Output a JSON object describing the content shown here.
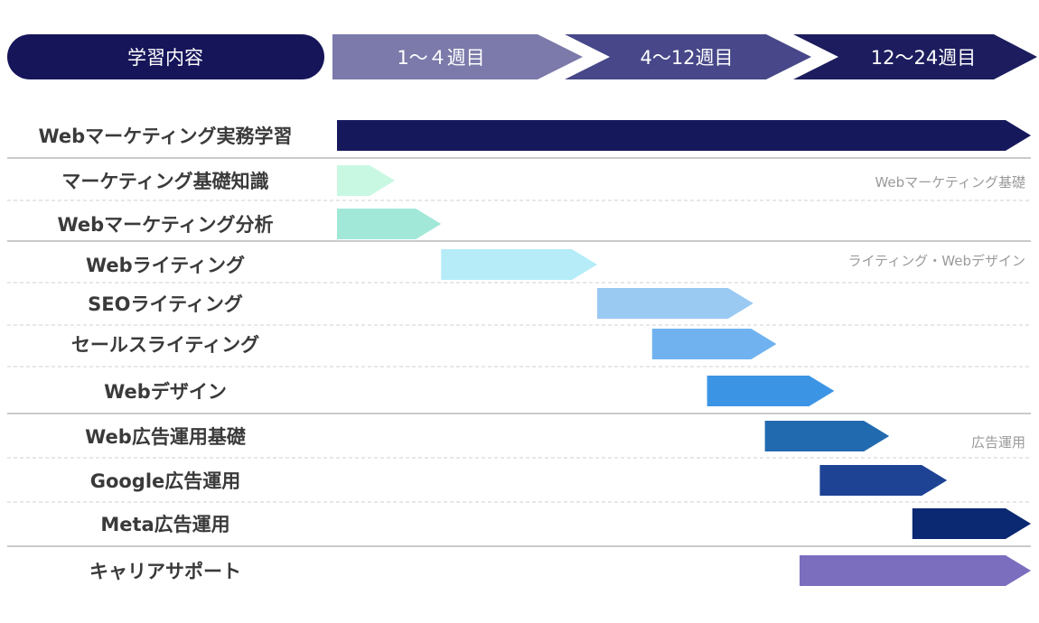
{
  "colors": {
    "header_pill": "#16155a",
    "header_period_1": "#7b7aaa",
    "header_period_2": "#474789",
    "header_period_3": "#1c1c5e",
    "divider_solid": "#b9b9b9",
    "divider_dashed": "#cfcfcf",
    "row_text": "#3a3a3a",
    "group_text": "#9a9a9a"
  },
  "header": {
    "label": "学習内容",
    "periods": [
      "1～４週目",
      "4～12週目",
      "12～24週目"
    ]
  },
  "chart_data": {
    "type": "gantt",
    "x_unit": "week",
    "x_range": [
      0,
      24
    ],
    "rows": [
      {
        "label": "Webマーケティング実務学習",
        "start": 0,
        "end": 24,
        "color": "#16185c"
      },
      {
        "label": "マーケティング基礎知識",
        "start": 0,
        "end": 2,
        "color": "#c8f8e2"
      },
      {
        "label": "Webマーケティング分析",
        "start": 0,
        "end": 3.6,
        "color": "#a2e8d9"
      },
      {
        "label": "Webライティング",
        "start": 3.6,
        "end": 9,
        "color": "#b5ecf8"
      },
      {
        "label": "SEOライティング",
        "start": 9,
        "end": 14.4,
        "color": "#9ac9f2"
      },
      {
        "label": "セールスライティング",
        "start": 10.9,
        "end": 15.2,
        "color": "#6fb2ef"
      },
      {
        "label": "Webデザイン",
        "start": 12.8,
        "end": 17.2,
        "color": "#3c95e4"
      },
      {
        "label": "Web広告運用基礎",
        "start": 14.8,
        "end": 19.1,
        "color": "#226aaf"
      },
      {
        "label": "Google広告運用",
        "start": 16.7,
        "end": 21.1,
        "color": "#1e4395"
      },
      {
        "label": "Meta広告運用",
        "start": 19.9,
        "end": 24,
        "color": "#0b2872"
      },
      {
        "label": "キャリアサポート",
        "start": 16,
        "end": 24,
        "color": "#7b6ebf"
      }
    ],
    "groups": [
      {
        "label": "Webマーケティング基礎",
        "rows": [
          1,
          2
        ]
      },
      {
        "label": "ライティング・Webデザイン",
        "rows": [
          3,
          4,
          5,
          6
        ]
      },
      {
        "label": "広告運用",
        "rows": [
          7,
          8,
          9
        ]
      }
    ]
  }
}
